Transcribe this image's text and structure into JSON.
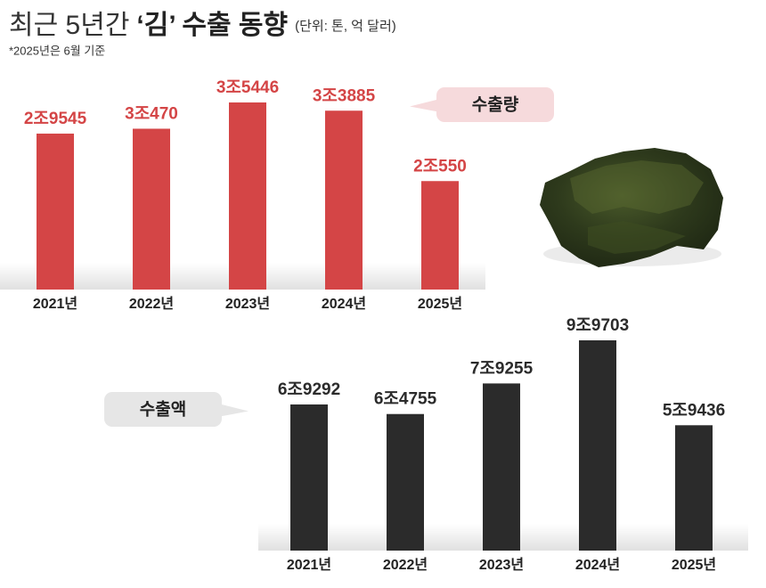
{
  "header": {
    "title": [
      "최근 5년간",
      "‘김’ 수출 동향"
    ],
    "unit": "(단위: 톤, 억 달러)",
    "note": "*2025년은 6월 기준"
  },
  "chart_data": [
    {
      "type": "bar",
      "categories": [
        "2021년",
        "2022년",
        "2023년",
        "2024년",
        "2025년"
      ],
      "series": [
        {
          "name": "수출량",
          "color": "#d44546",
          "values": [
            29545,
            30470,
            35446,
            33885,
            20550
          ],
          "value_labels": [
            "2조9545",
            "3조470",
            "3조5446",
            "3조3885",
            "2조550"
          ]
        }
      ]
    },
    {
      "type": "bar",
      "categories": [
        "2021년",
        "2022년",
        "2023년",
        "2024년",
        "2025년"
      ],
      "series": [
        {
          "name": "수출액",
          "color": "#2b2b2b",
          "values": [
            69292,
            64755,
            79255,
            99703,
            59436
          ],
          "value_labels": [
            "6조9292",
            "6조4755",
            "7조9255",
            "9조9703",
            "5조9436"
          ]
        }
      ]
    }
  ]
}
